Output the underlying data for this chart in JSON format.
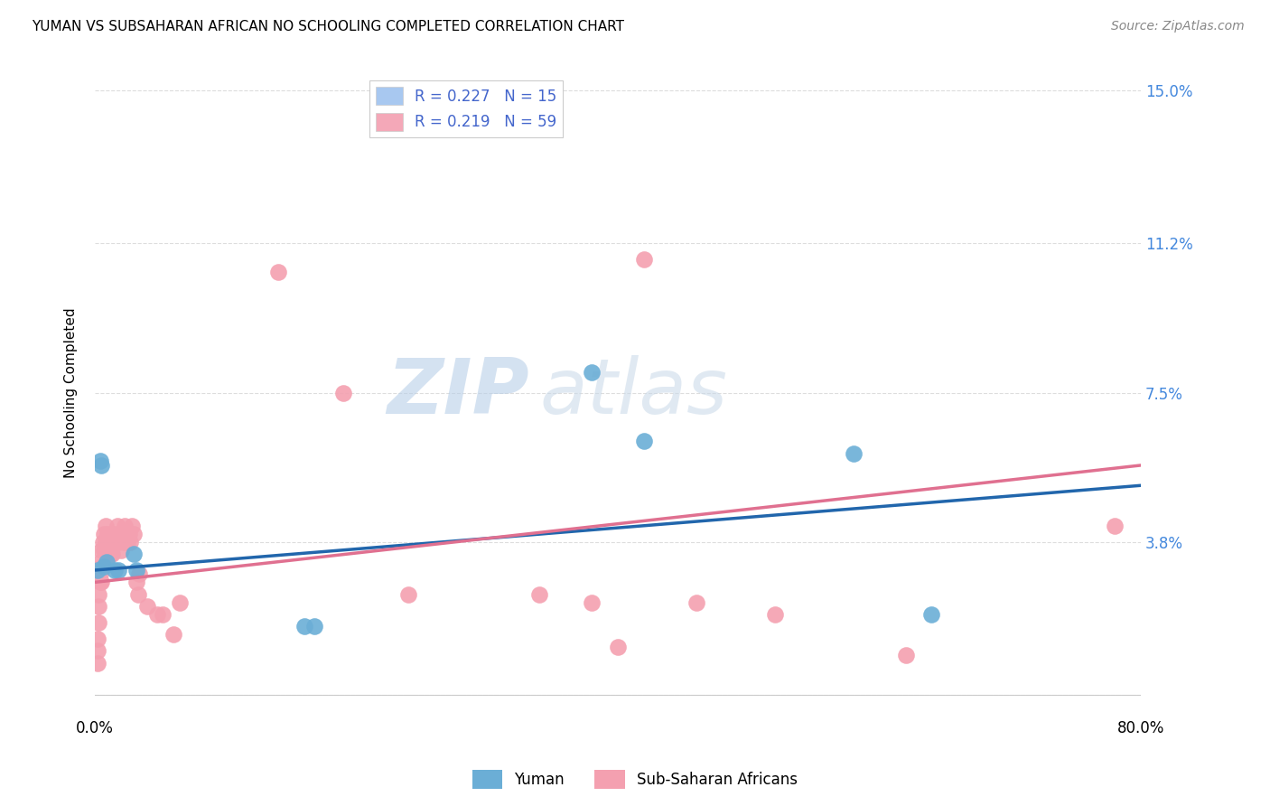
{
  "title": "YUMAN VS SUBSAHARAN AFRICAN NO SCHOOLING COMPLETED CORRELATION CHART",
  "source": "Source: ZipAtlas.com",
  "ylabel": "No Schooling Completed",
  "xlim": [
    0.0,
    0.8
  ],
  "ylim": [
    -0.005,
    0.155
  ],
  "yticks": [
    0.0,
    0.038,
    0.075,
    0.112,
    0.15
  ],
  "ytick_labels": [
    "",
    "3.8%",
    "7.5%",
    "11.2%",
    "15.0%"
  ],
  "xticks": [
    0.0,
    0.16,
    0.32,
    0.48,
    0.64,
    0.8
  ],
  "xtick_labels": [
    "0.0%",
    "",
    "",
    "",
    "",
    "80.0%"
  ],
  "legend_entries": [
    {
      "label": "R = 0.227   N = 15",
      "color": "#a8c8f0"
    },
    {
      "label": "R = 0.219   N = 59",
      "color": "#f4a8b8"
    }
  ],
  "yuman_color": "#6baed6",
  "subsaharan_color": "#f4a0b0",
  "yuman_line_color": "#2166ac",
  "subsaharan_line_color": "#e07090",
  "watermark_zip": "ZIP",
  "watermark_atlas": "atlas",
  "background_color": "#ffffff",
  "grid_color": "#dddddd",
  "yuman_line_start": 0.031,
  "yuman_line_end": 0.052,
  "subsaharan_line_start": 0.028,
  "subsaharan_line_end": 0.057,
  "yuman_points": [
    [
      0.002,
      0.031
    ],
    [
      0.004,
      0.058
    ],
    [
      0.005,
      0.057
    ],
    [
      0.007,
      0.032
    ],
    [
      0.009,
      0.033
    ],
    [
      0.015,
      0.031
    ],
    [
      0.018,
      0.031
    ],
    [
      0.03,
      0.035
    ],
    [
      0.032,
      0.031
    ],
    [
      0.16,
      0.017
    ],
    [
      0.168,
      0.017
    ],
    [
      0.38,
      0.08
    ],
    [
      0.42,
      0.063
    ],
    [
      0.58,
      0.06
    ],
    [
      0.64,
      0.02
    ]
  ],
  "subsaharan_points": [
    [
      0.002,
      0.008
    ],
    [
      0.002,
      0.011
    ],
    [
      0.002,
      0.014
    ],
    [
      0.003,
      0.018
    ],
    [
      0.003,
      0.022
    ],
    [
      0.003,
      0.025
    ],
    [
      0.004,
      0.028
    ],
    [
      0.004,
      0.03
    ],
    [
      0.004,
      0.033
    ],
    [
      0.005,
      0.028
    ],
    [
      0.005,
      0.032
    ],
    [
      0.005,
      0.036
    ],
    [
      0.006,
      0.032
    ],
    [
      0.006,
      0.038
    ],
    [
      0.007,
      0.036
    ],
    [
      0.007,
      0.04
    ],
    [
      0.008,
      0.038
    ],
    [
      0.008,
      0.042
    ],
    [
      0.009,
      0.036
    ],
    [
      0.01,
      0.038
    ],
    [
      0.01,
      0.04
    ],
    [
      0.011,
      0.036
    ],
    [
      0.012,
      0.035
    ],
    [
      0.012,
      0.038
    ],
    [
      0.013,
      0.035
    ],
    [
      0.014,
      0.038
    ],
    [
      0.015,
      0.04
    ],
    [
      0.016,
      0.038
    ],
    [
      0.017,
      0.042
    ],
    [
      0.018,
      0.038
    ],
    [
      0.019,
      0.04
    ],
    [
      0.02,
      0.036
    ],
    [
      0.022,
      0.038
    ],
    [
      0.023,
      0.042
    ],
    [
      0.024,
      0.04
    ],
    [
      0.025,
      0.038
    ],
    [
      0.026,
      0.04
    ],
    [
      0.027,
      0.038
    ],
    [
      0.028,
      0.042
    ],
    [
      0.03,
      0.04
    ],
    [
      0.032,
      0.028
    ],
    [
      0.033,
      0.025
    ],
    [
      0.034,
      0.03
    ],
    [
      0.04,
      0.022
    ],
    [
      0.048,
      0.02
    ],
    [
      0.052,
      0.02
    ],
    [
      0.06,
      0.015
    ],
    [
      0.065,
      0.023
    ],
    [
      0.14,
      0.105
    ],
    [
      0.19,
      0.075
    ],
    [
      0.24,
      0.025
    ],
    [
      0.34,
      0.025
    ],
    [
      0.38,
      0.023
    ],
    [
      0.4,
      0.012
    ],
    [
      0.42,
      0.108
    ],
    [
      0.46,
      0.023
    ],
    [
      0.52,
      0.02
    ],
    [
      0.62,
      0.01
    ],
    [
      0.78,
      0.042
    ]
  ]
}
